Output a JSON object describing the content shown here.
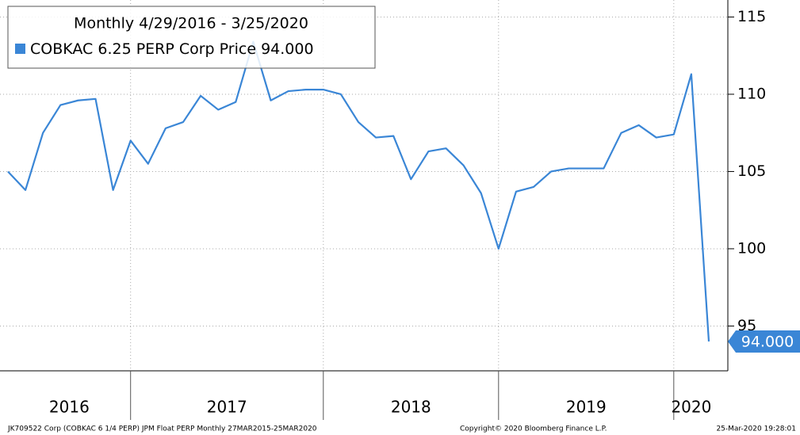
{
  "chart_data": {
    "type": "line",
    "title": "Monthly 4/29/2016 - 3/25/2020",
    "x": [
      0,
      1,
      2,
      3,
      4,
      5,
      6,
      7,
      8,
      9,
      10,
      11,
      12,
      13,
      14,
      15,
      16,
      17,
      18,
      19,
      20,
      21,
      22,
      23,
      24,
      25,
      26,
      27,
      28,
      29,
      30,
      31,
      32,
      33,
      34,
      35,
      36,
      37,
      38,
      39,
      40
    ],
    "xlim": [
      0,
      40
    ],
    "xticks": [
      7,
      18,
      28,
      38
    ],
    "year_labels": [
      "2016",
      "2017",
      "2018",
      "2019",
      "2020"
    ],
    "series": [
      {
        "name": "COBKAC 6.25 PERP Corp Price",
        "color": "#3a86d6",
        "values": [
          105.0,
          103.8,
          107.5,
          109.3,
          109.6,
          109.7,
          103.8,
          107.0,
          105.5,
          107.8,
          108.2,
          109.9,
          109.0,
          109.5,
          113.4,
          109.6,
          110.2,
          110.3,
          110.3,
          110.0,
          108.2,
          107.2,
          107.3,
          104.5,
          106.3,
          106.5,
          105.4,
          103.6,
          100.0,
          103.7,
          104.0,
          105.0,
          105.2,
          105.2,
          105.2,
          107.5,
          108.0,
          107.2,
          107.4,
          111.3,
          94.0
        ],
        "value_labels": [
          null,
          null,
          null,
          null,
          null,
          null,
          null,
          null,
          null,
          null,
          null,
          null,
          null,
          null,
          null,
          null,
          null,
          null,
          null,
          null,
          null,
          null,
          null,
          null,
          null,
          null,
          null,
          null,
          null,
          null,
          null,
          null,
          null,
          null,
          null,
          null,
          null,
          null,
          null,
          null,
          "94.000"
        ]
      }
    ],
    "ylim": [
      92.1,
      116.1
    ],
    "yticks": [
      95,
      100,
      105,
      110,
      115
    ],
    "grid": true,
    "footer": [
      "JK709522 Corp (COBKAC 6 1/4 PERP) JPM Float PERP  Monthly 27MAR2015-25MAR2020",
      "Copyright© 2020 Bloomberg Finance L.P.",
      "25-Mar-2020 19:28:01"
    ]
  }
}
